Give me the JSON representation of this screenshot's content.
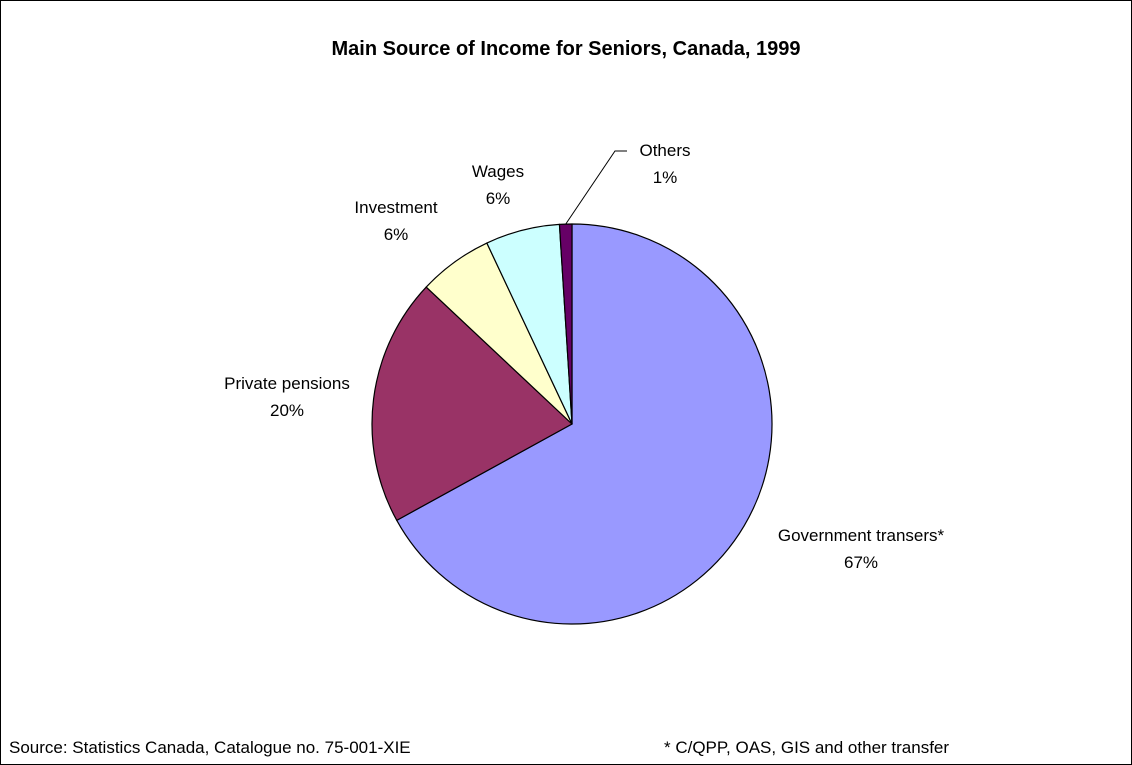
{
  "chart_data": {
    "type": "pie",
    "title": "Main Source of Income for Seniors, Canada, 1999",
    "slices": [
      {
        "label": "Government transers*",
        "value": 67,
        "value_label": "67%",
        "color": "#9999FF"
      },
      {
        "label": "Private pensions",
        "value": 20,
        "value_label": "20%",
        "color": "#993366"
      },
      {
        "label": "Investment",
        "value": 6,
        "value_label": "6%",
        "color": "#FFFFCC"
      },
      {
        "label": "Wages",
        "value": 6,
        "value_label": "6%",
        "color": "#CCFFFF"
      },
      {
        "label": "Others",
        "value": 1,
        "value_label": "1%",
        "color": "#660066"
      }
    ],
    "start_angle_deg": 0,
    "direction": "clockwise"
  },
  "footer": {
    "source": "Source: Statistics Canada, Catalogue no. 75-001-XIE",
    "note": "* C/QPP, OAS, GIS and other transfer"
  }
}
